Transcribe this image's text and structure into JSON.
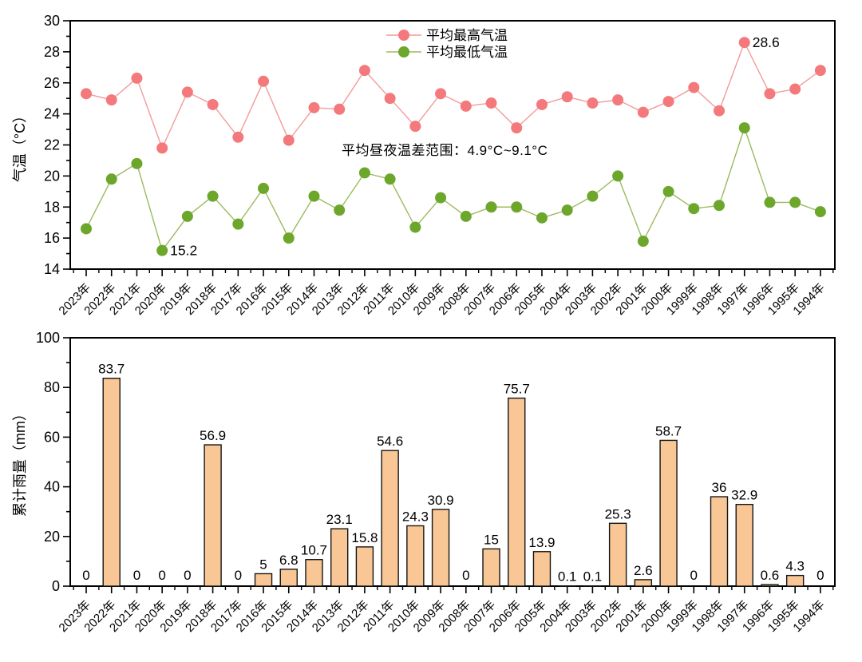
{
  "figure": {
    "background": "#ffffff",
    "text_color": "#000000"
  },
  "chart_data": [
    {
      "type": "line",
      "ylabel": "气温（°C）",
      "ylim": [
        14,
        30
      ],
      "ytick_major": 2,
      "ytick_minor": 1,
      "grid": false,
      "legend_position": "top-center",
      "annotation": "平均昼夜温差范围：4.9°C~9.1°C",
      "categories": [
        "2023年",
        "2022年",
        "2021年",
        "2020年",
        "2019年",
        "2018年",
        "2017年",
        "2016年",
        "2015年",
        "2014年",
        "2013年",
        "2012年",
        "2011年",
        "2010年",
        "2009年",
        "2008年",
        "2007年",
        "2006年",
        "2005年",
        "2004年",
        "2003年",
        "2002年",
        "2001年",
        "2000年",
        "1999年",
        "1998年",
        "1997年",
        "1996年",
        "1995年",
        "1994年"
      ],
      "series": [
        {
          "name": "平均最高气温",
          "marker_color": "#f4797c",
          "line_color": "#f29b9b",
          "values": [
            25.3,
            24.9,
            26.3,
            21.8,
            25.4,
            24.6,
            22.5,
            26.1,
            22.3,
            24.4,
            24.3,
            26.8,
            25.0,
            23.2,
            25.3,
            24.5,
            24.7,
            23.1,
            24.6,
            25.1,
            24.7,
            24.9,
            24.1,
            24.8,
            25.7,
            24.2,
            28.6,
            25.3,
            25.6,
            26.8
          ]
        },
        {
          "name": "平均最低气温",
          "marker_color": "#6ca72c",
          "line_color": "#9cba60",
          "values": [
            16.6,
            19.8,
            20.8,
            15.2,
            17.4,
            18.7,
            16.9,
            19.2,
            16.0,
            18.7,
            17.8,
            20.2,
            19.8,
            16.7,
            18.6,
            17.4,
            18.0,
            18.0,
            17.3,
            17.8,
            18.7,
            20.0,
            15.8,
            19.0,
            17.9,
            18.1,
            23.1,
            18.3,
            18.3,
            17.7
          ]
        }
      ],
      "point_labels": [
        {
          "series": 0,
          "index": 26,
          "category": "1997年",
          "text": "28.6"
        },
        {
          "series": 1,
          "index": 3,
          "category": "2020年",
          "text": "15.2"
        }
      ]
    },
    {
      "type": "bar",
      "ylabel": "累计雨量（mm）",
      "ylim": [
        0,
        100
      ],
      "ytick_major": 20,
      "ytick_minor": 10,
      "grid": false,
      "bar_color": "#f9c795",
      "bar_edge_color": "#141414",
      "categories": [
        "2023年",
        "2022年",
        "2021年",
        "2020年",
        "2019年",
        "2018年",
        "2017年",
        "2016年",
        "2015年",
        "2014年",
        "2013年",
        "2012年",
        "2011年",
        "2010年",
        "2009年",
        "2008年",
        "2007年",
        "2006年",
        "2005年",
        "2004年",
        "2003年",
        "2002年",
        "2001年",
        "2000年",
        "1999年",
        "1998年",
        "1997年",
        "1996年",
        "1995年",
        "1994年"
      ],
      "values": [
        0,
        83.7,
        0,
        0,
        0,
        56.9,
        0,
        5,
        6.8,
        10.7,
        23.1,
        15.8,
        54.6,
        24.3,
        30.9,
        0,
        15,
        75.7,
        13.9,
        0.1,
        0.1,
        25.3,
        2.6,
        58.7,
        0,
        36,
        32.9,
        0.6,
        4.3,
        0
      ],
      "value_labels": [
        "0",
        "83.7",
        "0",
        "0",
        "0",
        "56.9",
        "0",
        "5",
        "6.8",
        "10.7",
        "23.1",
        "15.8",
        "54.6",
        "24.3",
        "30.9",
        "0",
        "15",
        "75.7",
        "13.9",
        "0.1",
        "0.1",
        "25.3",
        "2.6",
        "58.7",
        "0",
        "36",
        "32.9",
        "0.6",
        "4.3",
        "0"
      ]
    }
  ]
}
